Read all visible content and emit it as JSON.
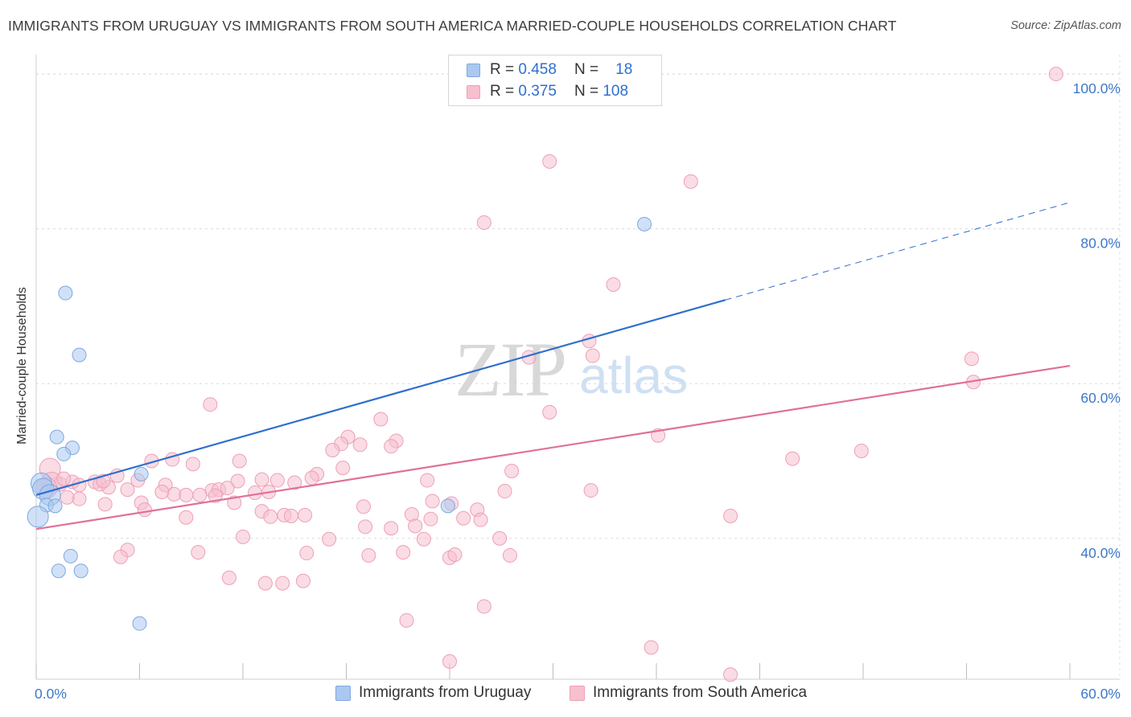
{
  "header": {
    "title": "IMMIGRANTS FROM URUGUAY VS IMMIGRANTS FROM SOUTH AMERICA MARRIED-COUPLE HOUSEHOLDS CORRELATION CHART",
    "source": "Source: ZipAtlas.com"
  },
  "watermark": {
    "part1": "ZIP",
    "part2": "atlas"
  },
  "legend": {
    "r_label": "R =",
    "n_label": "N =",
    "series": [
      {
        "name": "Immigrants from Uruguay",
        "r": "0.458",
        "n": "18",
        "fill": "#aac8f0",
        "stroke": "#7fa8e0"
      },
      {
        "name": "Immigrants from South America",
        "r": "0.375",
        "n": "108",
        "fill": "#f6c0cf",
        "stroke": "#ee9fb6"
      }
    ]
  },
  "chart_data": {
    "type": "scatter",
    "ylabel": "Married-couple Households",
    "xlabel": "",
    "xlim": [
      0,
      60
    ],
    "ylim": [
      21.8,
      102.5
    ],
    "x_tick_labels": [
      {
        "value": 0,
        "label": "0.0%"
      },
      {
        "value": 60,
        "label": "60.0%"
      }
    ],
    "x_minor_ticks": [
      0,
      6,
      12,
      18,
      24,
      30,
      36,
      42,
      48,
      54,
      60
    ],
    "y_tick_labels": [
      {
        "value": 40,
        "label": "40.0%"
      },
      {
        "value": 60,
        "label": "60.0%"
      },
      {
        "value": 80,
        "label": "80.0%"
      },
      {
        "value": 100,
        "label": "100.0%"
      }
    ],
    "grid": true,
    "series": [
      {
        "name": "Immigrants from Uruguay",
        "color": "#aac8f0",
        "stroke": "#7fa8e0",
        "trend_color": "#2f6fcf",
        "trend": {
          "x0": 0,
          "y0": 45.6,
          "x1": 60,
          "y1": 83.4,
          "solid_until_x": 40
        },
        "points": [
          [
            1.7,
            71.7
          ],
          [
            2.5,
            63.7
          ],
          [
            1.2,
            53.1
          ],
          [
            2.1,
            51.7
          ],
          [
            1.6,
            50.9
          ],
          [
            6.1,
            48.3
          ],
          [
            0.3,
            47.1
          ],
          [
            0.4,
            46.4
          ],
          [
            0.8,
            45.6
          ],
          [
            0.6,
            44.3
          ],
          [
            1.1,
            44.2
          ],
          [
            0.1,
            42.8
          ],
          [
            2.0,
            37.7
          ],
          [
            1.3,
            35.8
          ],
          [
            2.6,
            35.8
          ],
          [
            6.0,
            29.0
          ],
          [
            35.3,
            80.6
          ],
          [
            23.9,
            44.2
          ]
        ]
      },
      {
        "name": "Immigrants from South America",
        "color": "#f6c0cf",
        "stroke": "#ee9fb6",
        "trend_color": "#e0709a",
        "trend": {
          "x0": 0,
          "y0": 41.2,
          "x1": 60,
          "y1": 62.3
        },
        "points": [
          [
            59.2,
            100.0
          ],
          [
            29.8,
            88.7
          ],
          [
            38.0,
            86.1
          ],
          [
            26.0,
            80.8
          ],
          [
            33.5,
            72.8
          ],
          [
            32.1,
            65.5
          ],
          [
            28.6,
            63.4
          ],
          [
            32.3,
            63.6
          ],
          [
            54.3,
            63.2
          ],
          [
            54.4,
            60.2
          ],
          [
            10.1,
            57.3
          ],
          [
            29.8,
            56.3
          ],
          [
            20.0,
            55.4
          ],
          [
            36.1,
            53.3
          ],
          [
            18.1,
            53.1
          ],
          [
            20.9,
            52.6
          ],
          [
            17.7,
            52.2
          ],
          [
            18.8,
            52.1
          ],
          [
            20.6,
            51.9
          ],
          [
            17.2,
            51.4
          ],
          [
            47.9,
            51.3
          ],
          [
            43.9,
            50.3
          ],
          [
            0.8,
            49.0
          ],
          [
            11.8,
            50.0
          ],
          [
            6.7,
            50.0
          ],
          [
            7.9,
            50.2
          ],
          [
            9.1,
            49.6
          ],
          [
            17.8,
            49.1
          ],
          [
            16.3,
            48.3
          ],
          [
            27.6,
            48.7
          ],
          [
            4.7,
            48.1
          ],
          [
            16.0,
            47.8
          ],
          [
            13.1,
            47.6
          ],
          [
            0.9,
            47.2
          ],
          [
            1.4,
            47.0
          ],
          [
            2.1,
            47.3
          ],
          [
            3.4,
            47.3
          ],
          [
            5.9,
            47.5
          ],
          [
            14.0,
            47.5
          ],
          [
            11.7,
            47.4
          ],
          [
            22.7,
            47.5
          ],
          [
            15.0,
            47.2
          ],
          [
            3.7,
            47.0
          ],
          [
            0.6,
            46.5
          ],
          [
            1.6,
            47.7
          ],
          [
            2.5,
            46.9
          ],
          [
            4.2,
            46.6
          ],
          [
            5.3,
            46.3
          ],
          [
            7.5,
            46.9
          ],
          [
            10.2,
            46.2
          ],
          [
            10.6,
            46.3
          ],
          [
            11.1,
            46.5
          ],
          [
            12.7,
            45.9
          ],
          [
            13.5,
            46.0
          ],
          [
            8.0,
            45.7
          ],
          [
            8.7,
            45.6
          ],
          [
            9.5,
            45.6
          ],
          [
            10.4,
            45.5
          ],
          [
            2.5,
            45.1
          ],
          [
            1.8,
            45.3
          ],
          [
            4.0,
            44.4
          ],
          [
            6.1,
            44.6
          ],
          [
            11.5,
            44.6
          ],
          [
            19.0,
            44.1
          ],
          [
            23.0,
            44.8
          ],
          [
            24.1,
            44.5
          ],
          [
            27.2,
            46.1
          ],
          [
            32.2,
            46.2
          ],
          [
            6.3,
            43.7
          ],
          [
            8.7,
            42.7
          ],
          [
            13.1,
            43.5
          ],
          [
            14.4,
            43.0
          ],
          [
            13.6,
            42.8
          ],
          [
            14.8,
            42.9
          ],
          [
            15.6,
            43.0
          ],
          [
            21.8,
            43.1
          ],
          [
            25.6,
            43.7
          ],
          [
            22.9,
            42.5
          ],
          [
            24.8,
            42.6
          ],
          [
            25.8,
            42.4
          ],
          [
            40.3,
            42.9
          ],
          [
            19.1,
            41.5
          ],
          [
            20.6,
            41.3
          ],
          [
            22.0,
            41.6
          ],
          [
            12.0,
            40.2
          ],
          [
            17.0,
            39.9
          ],
          [
            22.5,
            39.9
          ],
          [
            26.9,
            40.0
          ],
          [
            5.3,
            38.5
          ],
          [
            9.4,
            38.2
          ],
          [
            15.7,
            38.1
          ],
          [
            19.3,
            37.8
          ],
          [
            21.3,
            38.2
          ],
          [
            4.9,
            37.6
          ],
          [
            24.0,
            37.5
          ],
          [
            24.3,
            37.9
          ],
          [
            27.5,
            37.8
          ],
          [
            11.2,
            34.9
          ],
          [
            13.3,
            34.2
          ],
          [
            14.3,
            34.2
          ],
          [
            15.5,
            34.5
          ],
          [
            21.5,
            29.4
          ],
          [
            26.0,
            31.2
          ],
          [
            35.7,
            25.9
          ],
          [
            24.0,
            24.1
          ],
          [
            40.3,
            22.4
          ],
          [
            7.3,
            46.0
          ],
          [
            3.9,
            47.4
          ]
        ]
      }
    ]
  }
}
